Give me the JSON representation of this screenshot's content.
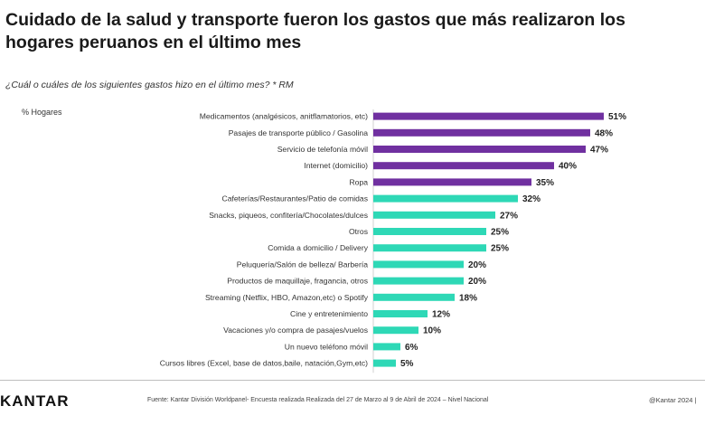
{
  "header": {
    "title": "Cuidado de la salud y transporte fueron los gastos que más realizaron los hogares peruanos en el último mes",
    "question": "¿Cuál o cuáles de los siguientes gastos hizo en el último mes? * RM"
  },
  "chart_data": {
    "type": "bar",
    "orientation": "horizontal",
    "unit_label": "% Hogares",
    "categories": [
      "Medicamentos (analgésicos, anitflamatorios, etc)",
      "Pasajes de transporte público / Gasolina",
      "Servicio de telefonía móvil",
      "Internet (domicilio)",
      "Ropa",
      "Cafeterías/Restaurantes/Patio de comidas",
      "Snacks, piqueos, confitería/Chocolates/dulces",
      "Otros",
      "Comida a domicilio / Delivery",
      "Peluquería/Salón de belleza/ Barbería",
      "Productos de maquillaje, fragancia, otros",
      "Streaming (Netflix, HBO, Amazon,etc) o Spotify",
      "Cine y entretenimiento",
      "Vacaciones y/o compra de pasajes/vuelos",
      "Un nuevo teléfono móvil",
      "Cursos libres (Excel, base de datos,baile, natación,Gym,etc)"
    ],
    "values": [
      51,
      48,
      47,
      40,
      35,
      32,
      27,
      25,
      25,
      20,
      20,
      18,
      12,
      10,
      6,
      5
    ],
    "value_labels": [
      "51%",
      "48%",
      "47%",
      "40%",
      "35%",
      "32%",
      "27%",
      "25%",
      "25%",
      "20%",
      "20%",
      "18%",
      "12%",
      "10%",
      "6%",
      "5%"
    ],
    "bar_colors": [
      "#7030a0",
      "#7030a0",
      "#7030a0",
      "#7030a0",
      "#7030a0",
      "#2ed8b6",
      "#2ed8b6",
      "#2ed8b6",
      "#2ed8b6",
      "#2ed8b6",
      "#2ed8b6",
      "#2ed8b6",
      "#2ed8b6",
      "#2ed8b6",
      "#2ed8b6",
      "#2ed8b6"
    ],
    "xlim": [
      0,
      55
    ],
    "grid": false,
    "legend": "none"
  },
  "footer": {
    "logo": "KANTAR",
    "source": "Fuente: Kantar División Worldpanel- Encuesta realizada Realizada del 27 de Marzo al 9 de Abril de 2024 – Nivel Nacional",
    "copyright": "@Kantar 2024 |"
  },
  "colors": {
    "accent_purple": "#7030a0",
    "accent_teal": "#2ed8b6"
  }
}
